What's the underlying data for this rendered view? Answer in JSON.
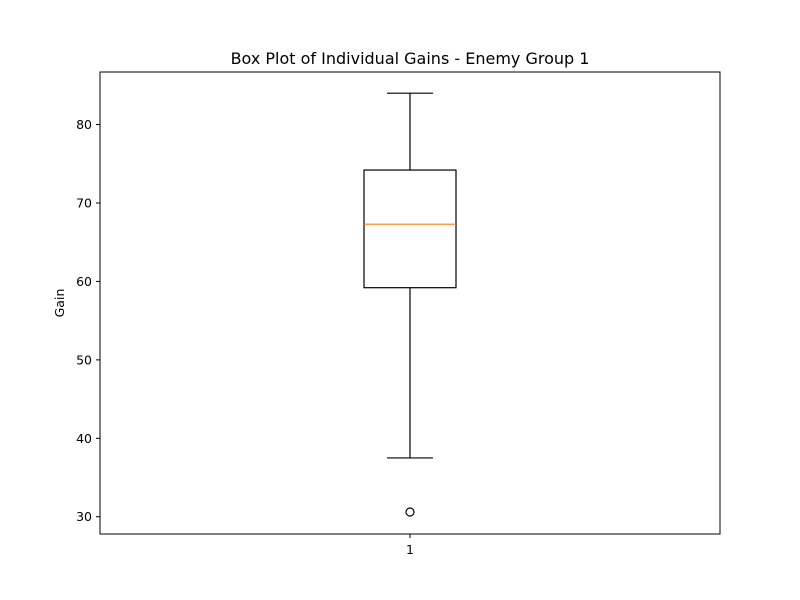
{
  "chart_data": {
    "type": "box",
    "title": "Box Plot of Individual Gains - Enemy Group 1",
    "xlabel": "",
    "ylabel": "Gain",
    "x_tick_labels": [
      "1"
    ],
    "y_ticks": [
      30,
      40,
      50,
      60,
      70,
      80
    ],
    "ylim": [
      27.8,
      86.7
    ],
    "grid": false,
    "boxes": [
      {
        "category": "1",
        "whisker_low": 37.5,
        "q1": 59.2,
        "median": 67.3,
        "q3": 74.2,
        "whisker_high": 84.0,
        "outliers": [
          30.6
        ]
      }
    ],
    "colors": {
      "box": "#000000",
      "median": "#ff7f0e",
      "whisker": "#000000",
      "outlier": "#000000"
    }
  }
}
